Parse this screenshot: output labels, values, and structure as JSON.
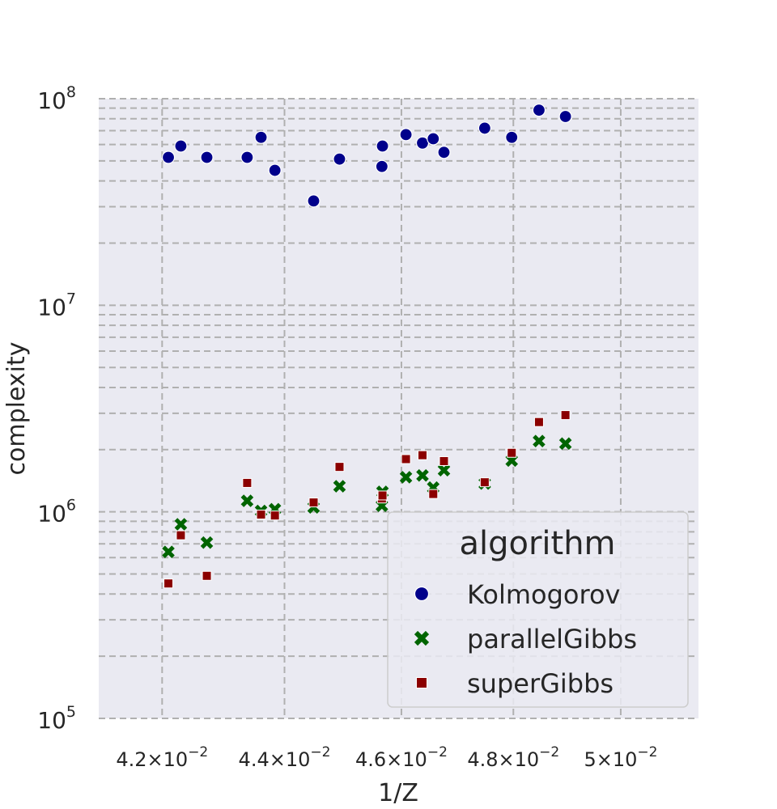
{
  "chart_data": {
    "type": "scatter",
    "xlabel": "1/Z",
    "ylabel": "complexity",
    "xscale": "log",
    "yscale": "log",
    "xlim": [
      0.041,
      0.0515
    ],
    "ylim": [
      100000,
      100000000
    ],
    "grid": true,
    "grid_style": "dashed, major and minor",
    "x_ticks": [
      {
        "value": 0.042,
        "label": "4.2",
        "exp": "-2"
      },
      {
        "value": 0.044,
        "label": "4.4",
        "exp": "-2"
      },
      {
        "value": 0.046,
        "label": "4.6",
        "exp": "-2"
      },
      {
        "value": 0.048,
        "label": "4.8",
        "exp": "-2"
      },
      {
        "value": 0.05,
        "label": "5",
        "exp": "-2"
      }
    ],
    "y_ticks": [
      {
        "value": 100000,
        "base": "10",
        "exp": "5"
      },
      {
        "value": 1000000,
        "base": "10",
        "exp": "6"
      },
      {
        "value": 10000000,
        "base": "10",
        "exp": "7"
      },
      {
        "value": 100000000,
        "base": "10",
        "exp": "8"
      }
    ],
    "legend": {
      "title": "algorithm",
      "placement": "lower right"
    },
    "series": [
      {
        "name": "Kolmogorov",
        "marker": "circle",
        "color": "#00008b",
        "points": [
          [
            0.0421,
            52000000
          ],
          [
            0.0423,
            59000000
          ],
          [
            0.04272,
            52000000
          ],
          [
            0.04338,
            52000000
          ],
          [
            0.04361,
            65000000
          ],
          [
            0.04384,
            45000000
          ],
          [
            0.04449,
            32000000
          ],
          [
            0.04493,
            51000000
          ],
          [
            0.04566,
            47000000
          ],
          [
            0.04567,
            59000000
          ],
          [
            0.04608,
            67000000
          ],
          [
            0.04637,
            61000000
          ],
          [
            0.04656,
            64000000
          ],
          [
            0.04675,
            55000000
          ],
          [
            0.04748,
            72000000
          ],
          [
            0.04797,
            65000000
          ],
          [
            0.04847,
            88000000
          ],
          [
            0.04896,
            82000000
          ]
        ]
      },
      {
        "name": "parallelGibbs",
        "marker": "x",
        "color": "#006400",
        "points": [
          [
            0.0421,
            640000
          ],
          [
            0.0423,
            870000
          ],
          [
            0.04272,
            710000
          ],
          [
            0.04338,
            1130000
          ],
          [
            0.04361,
            1010000
          ],
          [
            0.04384,
            1030000
          ],
          [
            0.04449,
            1050000
          ],
          [
            0.04493,
            1330000
          ],
          [
            0.04566,
            1070000
          ],
          [
            0.04567,
            1250000
          ],
          [
            0.04608,
            1470000
          ],
          [
            0.04637,
            1500000
          ],
          [
            0.04656,
            1310000
          ],
          [
            0.04675,
            1590000
          ],
          [
            0.04748,
            1370000
          ],
          [
            0.04797,
            1770000
          ],
          [
            0.04847,
            2200000
          ],
          [
            0.04896,
            2140000
          ]
        ]
      },
      {
        "name": "superGibbs",
        "marker": "square",
        "color": "#8b0000",
        "points": [
          [
            0.0421,
            450000
          ],
          [
            0.0423,
            770000
          ],
          [
            0.04272,
            490000
          ],
          [
            0.04338,
            1380000
          ],
          [
            0.04361,
            970000
          ],
          [
            0.04384,
            960000
          ],
          [
            0.04449,
            1110000
          ],
          [
            0.04493,
            1650000
          ],
          [
            0.04566,
            1160000
          ],
          [
            0.04567,
            1200000
          ],
          [
            0.04608,
            1800000
          ],
          [
            0.04637,
            1880000
          ],
          [
            0.04656,
            1220000
          ],
          [
            0.04675,
            1760000
          ],
          [
            0.04748,
            1390000
          ],
          [
            0.04797,
            1930000
          ],
          [
            0.04847,
            2720000
          ],
          [
            0.04896,
            2940000
          ]
        ]
      }
    ]
  }
}
